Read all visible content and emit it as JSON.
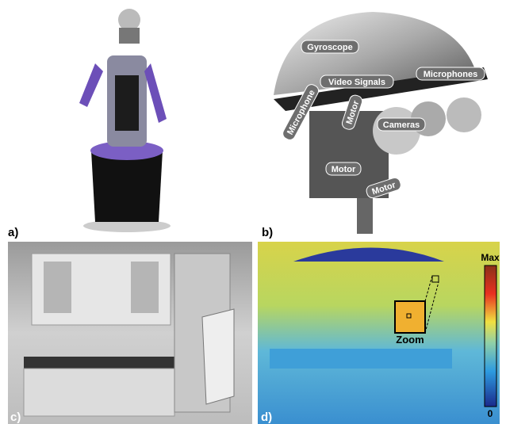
{
  "panels": [
    {
      "label": "a)"
    },
    {
      "label": "b)",
      "annotations": [
        "Gyroscope",
        "Video Signals",
        "Microphones",
        "Microphone",
        "Motor",
        "Cameras",
        "Motor",
        "Motor"
      ]
    },
    {
      "label": "c)"
    },
    {
      "label": "d)",
      "zoom_label": "Zoom",
      "colorbar": {
        "max_label": "Max",
        "min_label": "0"
      }
    }
  ]
}
